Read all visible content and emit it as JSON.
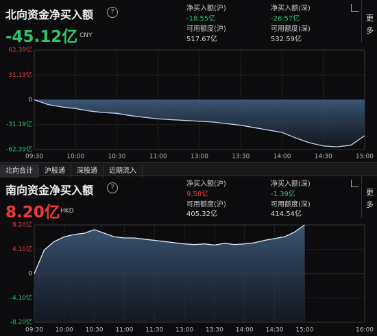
{
  "north": {
    "title": "北向资金净买入额",
    "value": "-45.12亿",
    "currency": "CNY",
    "stats": [
      {
        "label": "净买入额(沪)",
        "value": "-18.55亿"
      },
      {
        "label": "净买入额(深)",
        "value": "-26.57亿"
      },
      {
        "label": "可用额度(沪)",
        "value": "517.67亿"
      },
      {
        "label": "可用额度(深)",
        "value": "532.59亿"
      }
    ]
  },
  "more": "更多",
  "tabs": [
    "北向合计",
    "沪股通",
    "深股通",
    "近期流入"
  ],
  "south": {
    "title": "南向资金净买入额",
    "value": "8.20亿",
    "currency": "HKD",
    "stats": [
      {
        "label": "净买入额(沪)",
        "value": "9.58亿"
      },
      {
        "label": "净买入额(深)",
        "value": "-1.39亿"
      },
      {
        "label": "可用额度(沪)",
        "value": "405.32亿"
      },
      {
        "label": "可用额度(深)",
        "value": "414.54亿"
      }
    ]
  },
  "chart_data": [
    {
      "type": "area",
      "categories": [
        "09:30",
        "09:40",
        "09:50",
        "10:00",
        "10:10",
        "10:20",
        "10:30",
        "10:40",
        "10:50",
        "11:00",
        "11:10",
        "11:20",
        "13:00",
        "13:10",
        "13:20",
        "13:30",
        "13:40",
        "13:50",
        "14:00",
        "14:10",
        "14:20",
        "14:30",
        "14:40",
        "14:50",
        "15:00"
      ],
      "values": [
        0,
        -6,
        -9,
        -11,
        -14,
        -16,
        -17,
        -20,
        -22,
        -24,
        -25,
        -26,
        -27,
        -28,
        -30,
        -32,
        -35,
        -38,
        -41,
        -48,
        -54,
        -58,
        -59,
        -57,
        -45.12
      ],
      "color": "#c8d8ec",
      "ylim": [
        -62.39,
        62.39
      ],
      "yticks": [
        {
          "value": 62.39,
          "label": "62.39亿"
        },
        {
          "value": 31.19,
          "label": "31.19亿"
        },
        0,
        {
          "value": -31.19,
          "label": "-31.19亿"
        },
        {
          "value": -62.39,
          "label": "-62.39亿"
        }
      ],
      "xticks": [
        "09:30",
        "10:00",
        "10:30",
        "11:00",
        "13:00",
        "13:30",
        "14:00",
        "14:30",
        "15:00"
      ],
      "grid": true
    },
    {
      "type": "area",
      "categories": [
        "09:30",
        "09:40",
        "09:50",
        "10:00",
        "10:10",
        "10:20",
        "10:30",
        "10:40",
        "10:50",
        "11:00",
        "11:10",
        "11:20",
        "11:30",
        "11:40",
        "11:50",
        "13:00",
        "13:10",
        "13:20",
        "13:30",
        "13:40",
        "13:50",
        "14:00",
        "14:10",
        "14:20",
        "14:30",
        "14:40",
        "14:50",
        "15:00",
        "15:10",
        "15:20",
        "15:30",
        "15:40",
        "15:50",
        "16:00"
      ],
      "values": [
        0,
        4,
        5.4,
        6.2,
        6.6,
        6.8,
        7.4,
        6.8,
        6.2,
        6.0,
        6.0,
        5.8,
        5.6,
        5.4,
        5.2,
        5.0,
        4.9,
        5.0,
        4.8,
        5.1,
        4.9,
        5.0,
        5.2,
        5.6,
        5.9,
        6.2,
        7.0,
        8.2,
        null,
        null,
        null,
        null,
        null,
        null
      ],
      "color": "#e8eef6",
      "ylim": [
        -8.2,
        8.2
      ],
      "yticks": [
        {
          "value": 8.2,
          "label": "8.20亿"
        },
        {
          "value": 4.1,
          "label": "4.10亿"
        },
        0,
        {
          "value": -4.1,
          "label": "-4.10亿"
        },
        {
          "value": -8.2,
          "label": "-8.20亿"
        }
      ],
      "xticks": [
        "09:30",
        "10:00",
        "10:30",
        "11:00",
        "11:30",
        "13:00",
        "13:30",
        "14:00",
        "14:30",
        "15:00",
        "16:00"
      ],
      "grid": true
    }
  ]
}
